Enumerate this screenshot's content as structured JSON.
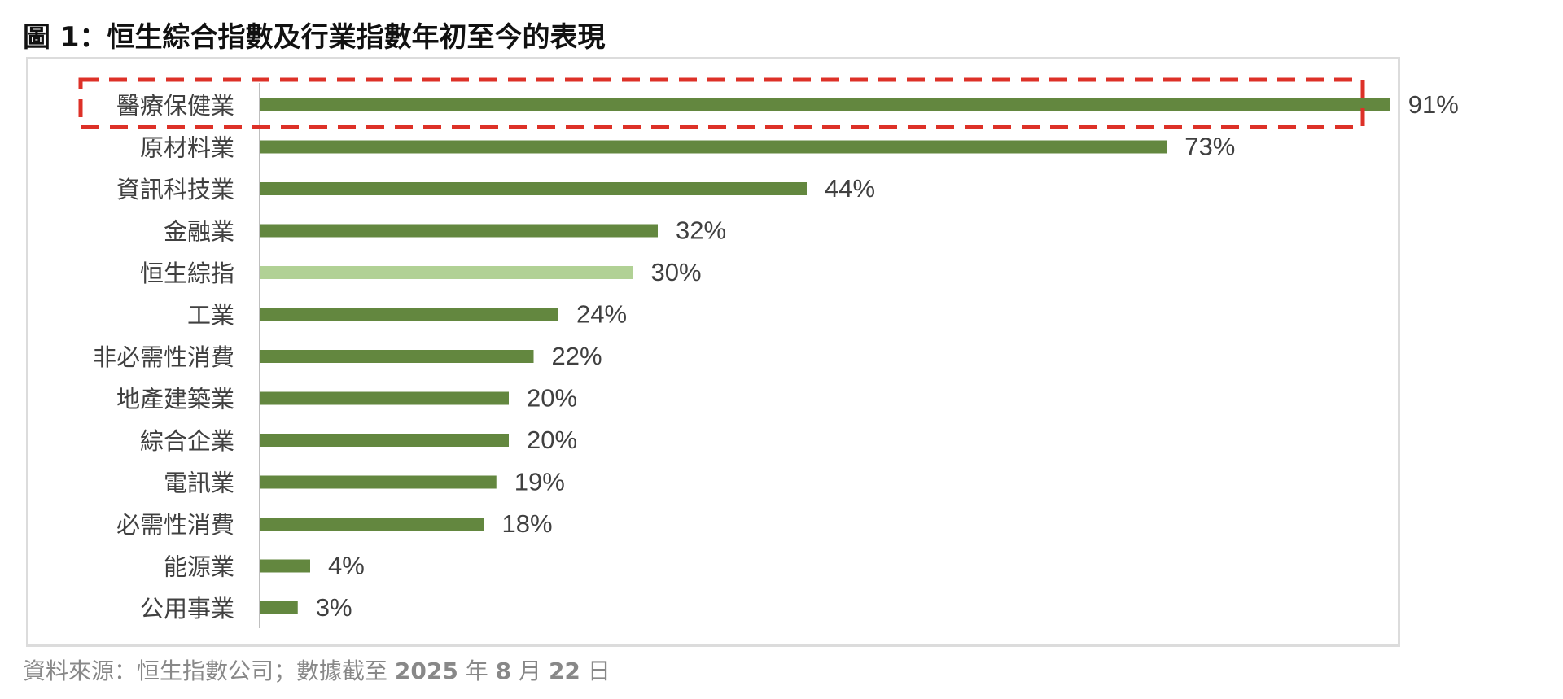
{
  "title": "圖 1：恒生綜合指數及行業指數年初至今的表現",
  "source": {
    "prefix": "資料來源：恒生指數公司；數據截至 ",
    "year": "2025",
    "year_unit": " 年 ",
    "month": "8",
    "month_unit": " 月 ",
    "day": "22",
    "day_unit": " 日"
  },
  "chart_data": {
    "type": "bar",
    "orientation": "horizontal",
    "categories": [
      "醫療保健業",
      "原材料業",
      "資訊科技業",
      "金融業",
      "恒生綜指",
      "工業",
      "非必需性消費",
      "地產建築業",
      "綜合企業",
      "電訊業",
      "必需性消費",
      "能源業",
      "公用事業"
    ],
    "values": [
      91,
      73,
      44,
      32,
      30,
      24,
      22,
      20,
      20,
      19,
      18,
      4,
      3
    ],
    "value_labels": [
      "91%",
      "73%",
      "44%",
      "32%",
      "30%",
      "24%",
      "22%",
      "20%",
      "20%",
      "19%",
      "18%",
      "4%",
      "3%"
    ],
    "unit": "%",
    "xlim": [
      0,
      100
    ],
    "grid": false,
    "colors": {
      "default": "#63873f",
      "index": "#b1d195",
      "highlight_box": "#dd3128",
      "axis": "#bfbfbf",
      "label": "#404040"
    },
    "index_category": "恒生綜指",
    "highlighted_category": "醫療保健業"
  }
}
